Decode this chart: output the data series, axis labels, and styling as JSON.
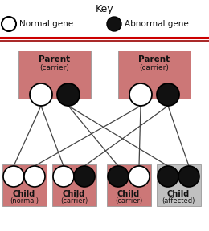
{
  "title": "Key",
  "legend_normal": "Normal gene",
  "legend_abnormal": "Abnormal gene",
  "parent_label": "Parent",
  "parent_sub": "(carrier)",
  "child_labels": [
    "Child",
    "Child",
    "Child",
    "Child"
  ],
  "child_subs": [
    "(normal)",
    "(carrier)",
    "(carrier)",
    "(affected)"
  ],
  "parent_bg": "#cc7777",
  "child_bg_pink": "#cc7777",
  "child_bg_gray": "#c0c0c0",
  "white_fill": "#ffffff",
  "black_fill": "#111111",
  "sep_color1": "#cc0000",
  "sep_color2": "#990000",
  "bg_color": "#ffffff",
  "text_color": "#111111",
  "line_color": "#444444",
  "key_title_fontsize": 9,
  "key_legend_fontsize": 7.5,
  "parent_label_fontsize": 7.5,
  "parent_sub_fontsize": 6.5,
  "child_label_fontsize": 7.0,
  "child_sub_fontsize": 6.0
}
